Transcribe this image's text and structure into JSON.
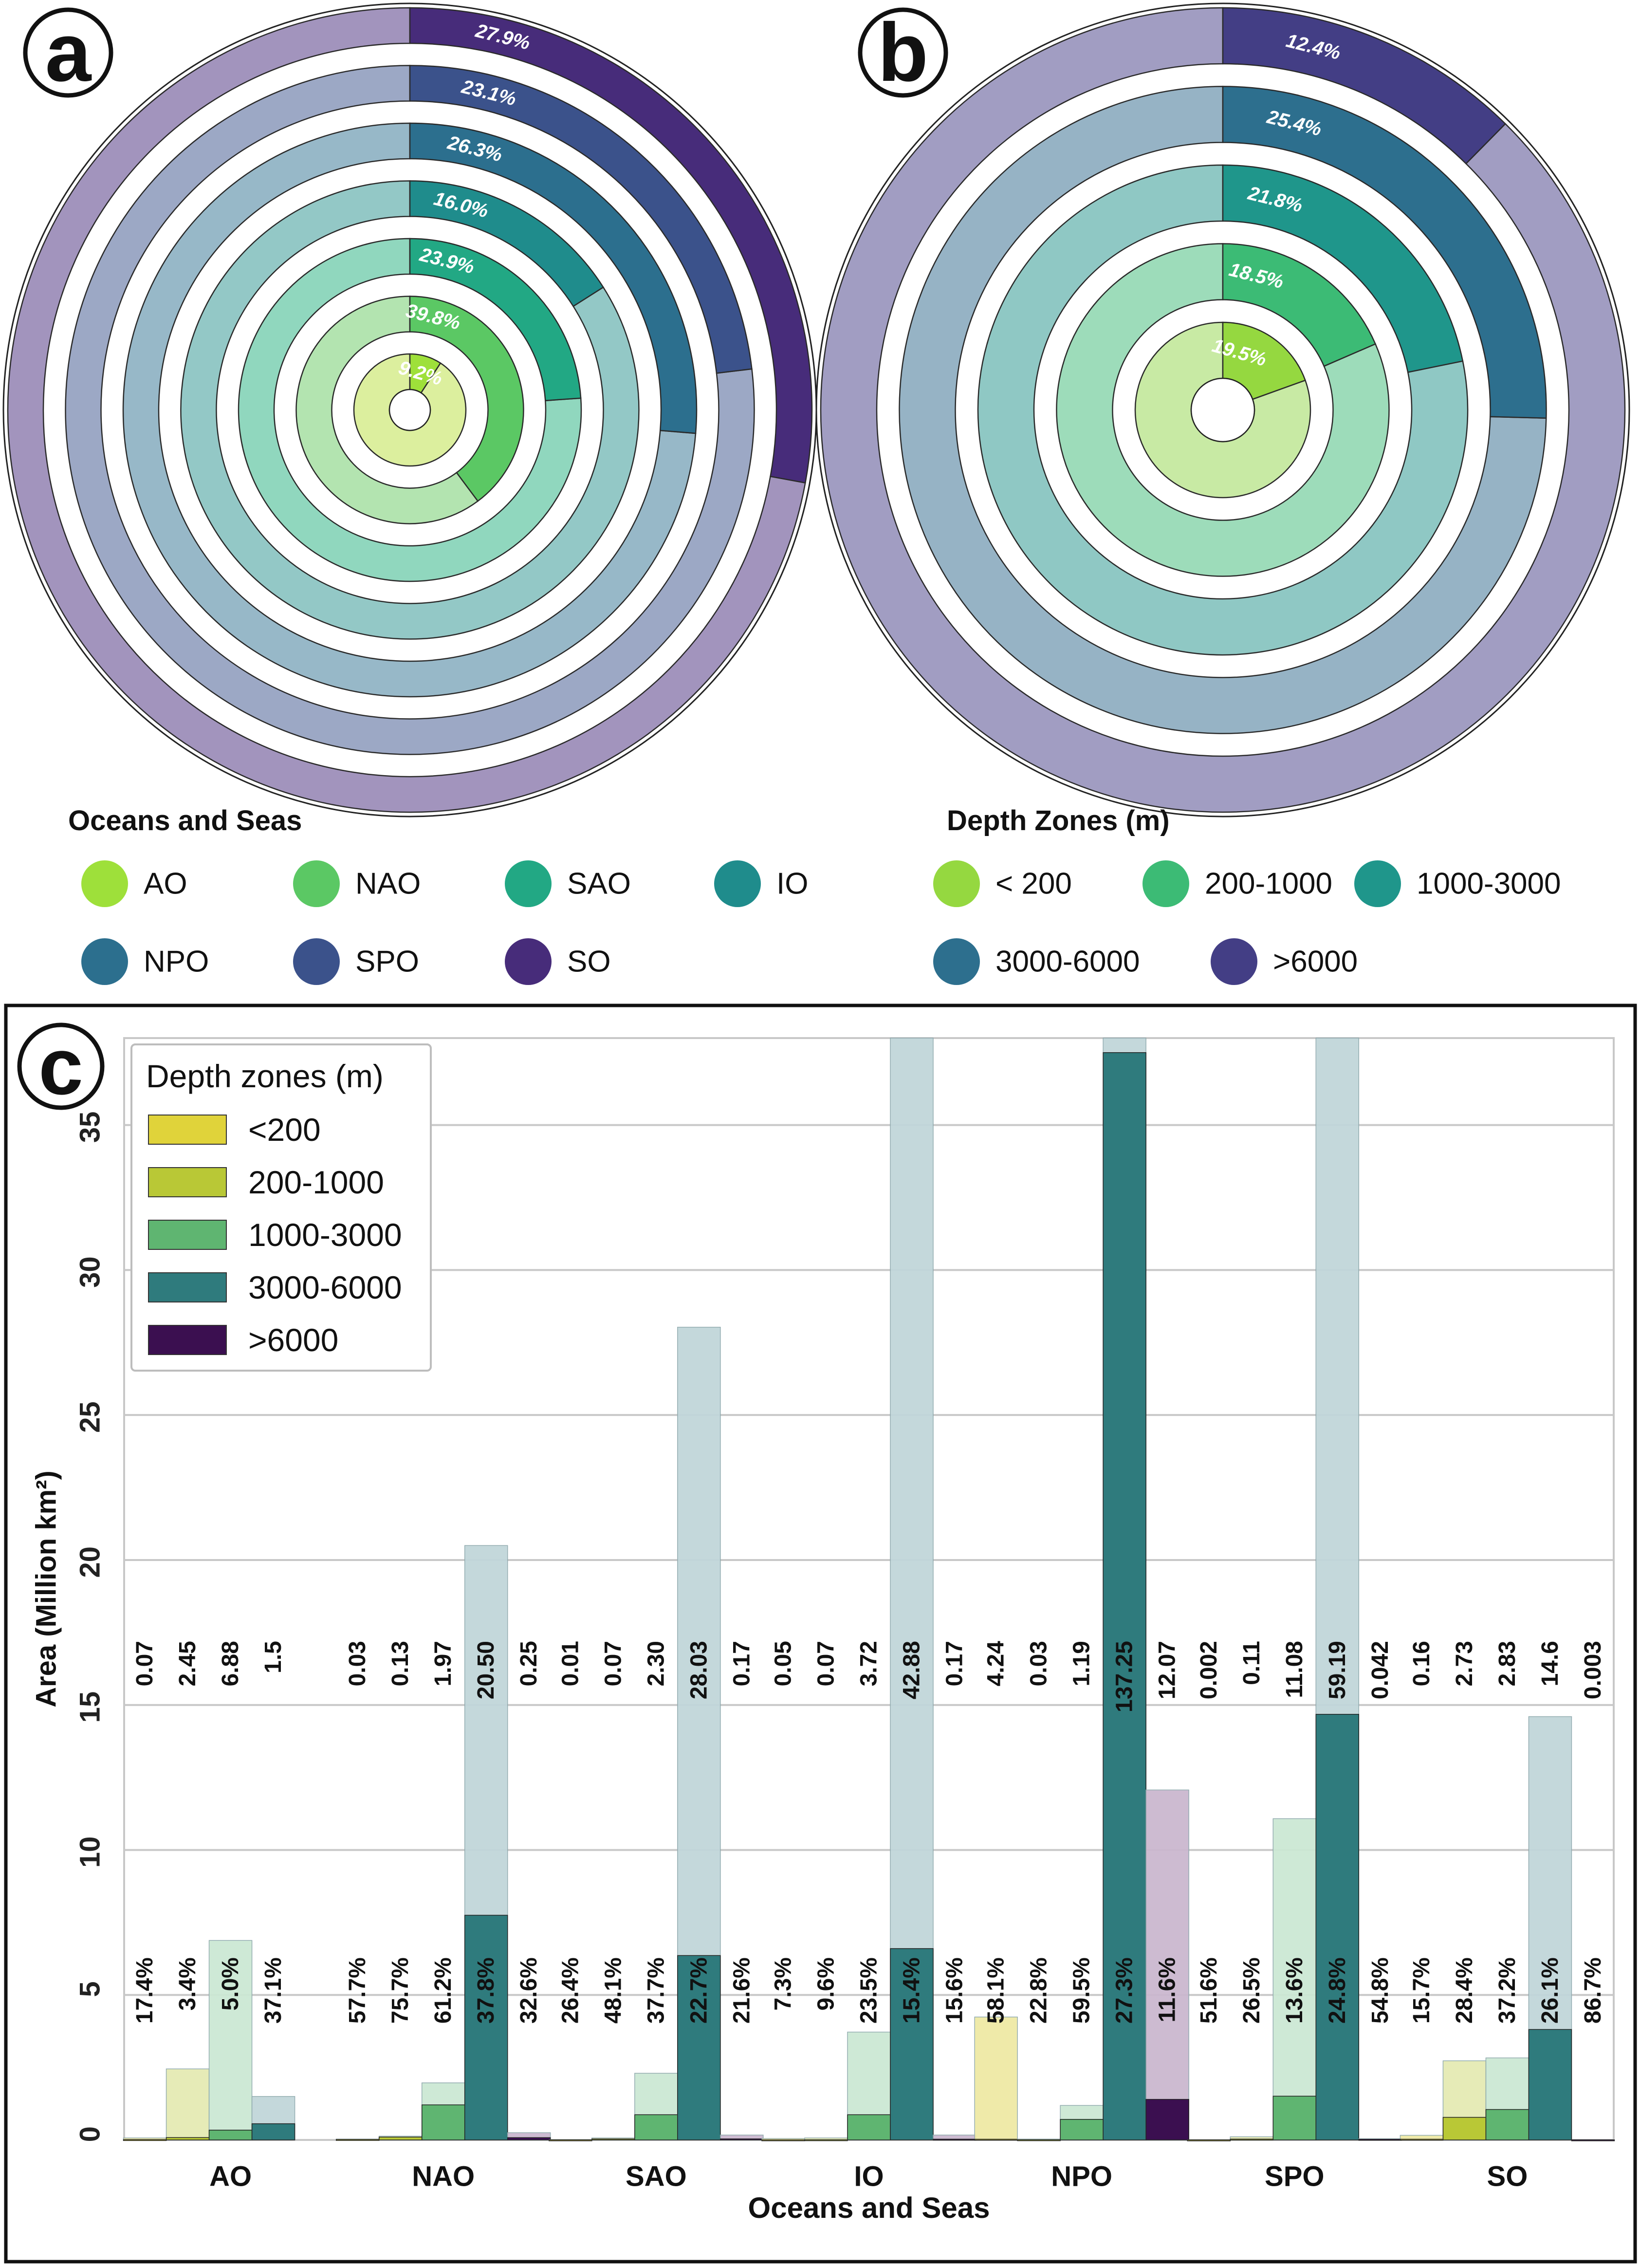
{
  "panels": {
    "a": {
      "letter": "a"
    },
    "b": {
      "letter": "b"
    },
    "c": {
      "letter": "c"
    }
  },
  "legend_oceans": {
    "title": "Oceans and Seas",
    "items": [
      {
        "label": "AO",
        "color": "#9ee03a"
      },
      {
        "label": "NAO",
        "color": "#5bc864"
      },
      {
        "label": "SAO",
        "color": "#22a884"
      },
      {
        "label": "IO",
        "color": "#1f8c8c"
      },
      {
        "label": "NPO",
        "color": "#2c6f8e"
      },
      {
        "label": "SPO",
        "color": "#3b528b"
      },
      {
        "label": "SO",
        "color": "#472c7a"
      }
    ]
  },
  "legend_depths": {
    "title": "Depth Zones (m)",
    "items": [
      {
        "label": "< 200",
        "color": "#95d840"
      },
      {
        "label": "200-1000",
        "color": "#3cbb75"
      },
      {
        "label": "1000-3000",
        "color": "#1f968b"
      },
      {
        "label": "3000-6000",
        "color": "#2d6f8e"
      },
      {
        "label": ">6000",
        "color": "#433e85"
      }
    ]
  },
  "chart_data": [
    {
      "panel": "a",
      "type": "pie",
      "title": "",
      "description_rings": "nested rings from center outward: AO, NAO, SAO, IO, NPO, SPO, SO; highlighted slice share per ring",
      "rings": [
        {
          "ocean": "AO",
          "percent": 9.2,
          "label": "9.2%",
          "color": "#9ee03a",
          "rest": "#dcef9e"
        },
        {
          "ocean": "NAO",
          "percent": 39.8,
          "label": "39.8%",
          "color": "#5bc864",
          "rest": "#b3e4b0"
        },
        {
          "ocean": "SAO",
          "percent": 23.9,
          "label": "23.9%",
          "color": "#22a884",
          "rest": "#90d7be"
        },
        {
          "ocean": "IO",
          "percent": 16.0,
          "label": "16.0%",
          "color": "#1f8c8c",
          "rest": "#93c8c6"
        },
        {
          "ocean": "NPO",
          "percent": 26.3,
          "label": "26.3%",
          "color": "#2c6f8e",
          "rest": "#97b8c8"
        },
        {
          "ocean": "SPO",
          "percent": 23.1,
          "label": "23.1%",
          "color": "#3b528b",
          "rest": "#9ca8c5"
        },
        {
          "ocean": "SO",
          "percent": 27.9,
          "label": "27.9%",
          "color": "#472c7a",
          "rest": "#a294bd"
        }
      ]
    },
    {
      "panel": "b",
      "type": "pie",
      "title": "",
      "description_rings": "nested rings from center outward: <200, 200-1000, 1000-3000, 3000-6000, >6000; highlighted slice share per ring",
      "rings": [
        {
          "zone": "< 200",
          "percent": 19.5,
          "label": "19.5%",
          "color": "#95d840",
          "rest": "#c8eaa4"
        },
        {
          "zone": "200-1000",
          "percent": 18.5,
          "label": "18.5%",
          "color": "#3cbb75",
          "rest": "#9ddcba"
        },
        {
          "zone": "1000-3000",
          "percent": 21.8,
          "label": "21.8%",
          "color": "#1f968b",
          "rest": "#8fc8c4"
        },
        {
          "zone": "3000-6000",
          "percent": 25.4,
          "label": "25.4%",
          "color": "#2d6f8e",
          "rest": "#96b3c5"
        },
        {
          "zone": ">6000",
          "percent": 12.4,
          "label": "12.4%",
          "color": "#433e85",
          "rest": "#a19dc2"
        }
      ]
    },
    {
      "panel": "c",
      "type": "bar",
      "title": "",
      "xlabel": "Oceans and Seas",
      "ylabel": "Area (Million km²)",
      "ylim": [
        0,
        38
      ],
      "yticks": [
        0,
        5,
        10,
        15,
        20,
        25,
        30,
        35
      ],
      "grid": true,
      "legend_title": "Depth zones (m)",
      "legend_placement": "top-left",
      "categories": [
        "AO",
        "NAO",
        "SAO",
        "IO",
        "NPO",
        "SPO",
        "SO"
      ],
      "series": [
        {
          "name": "<200",
          "color": "#e0d33a",
          "light": "#efe9a5",
          "values": [
            0.012,
            0.017,
            0.003,
            0.004,
            0.025,
            0.001,
            0.025
          ],
          "totals": [
            0.07,
            0.03,
            0.01,
            0.05,
            4.24,
            0.002,
            0.16
          ],
          "value_labels": [
            "0.07",
            "0.03",
            "0.01",
            "0.05",
            "4.24",
            "0.002",
            "0.16"
          ],
          "pct_labels": [
            "17.4%",
            "57.7%",
            "26.4%",
            "7.3%",
            "58.1%",
            "51.6%",
            "15.7%"
          ]
        },
        {
          "name": "200-1000",
          "color": "#b9c836",
          "light": "#e5eab4",
          "values": [
            0.083,
            0.098,
            0.034,
            0.007,
            0.007,
            0.029,
            0.78
          ],
          "totals": [
            2.45,
            0.13,
            0.07,
            0.07,
            0.03,
            0.11,
            2.73
          ],
          "value_labels": [
            "2.45",
            "0.13",
            "0.07",
            "0.07",
            "0.03",
            "0.11",
            "2.73"
          ],
          "pct_labels": [
            "3.4%",
            "75.7%",
            "48.1%",
            "9.6%",
            "22.8%",
            "26.5%",
            "28.4%"
          ]
        },
        {
          "name": "1000-3000",
          "color": "#5fb571",
          "light": "#cce8d4",
          "values": [
            0.34,
            1.21,
            0.87,
            0.87,
            0.71,
            1.51,
            1.05
          ],
          "totals": [
            6.88,
            1.97,
            2.3,
            3.72,
            1.19,
            11.08,
            2.83
          ],
          "value_labels": [
            "6.88",
            "1.97",
            "2.30",
            "3.72",
            "1.19",
            "11.08",
            "2.83"
          ],
          "pct_labels": [
            "5.0%",
            "61.2%",
            "37.7%",
            "23.5%",
            "59.5%",
            "13.6%",
            "37.2%"
          ]
        },
        {
          "name": "3000-6000",
          "color": "#2f7b7d",
          "light": "#c1d6da",
          "values": [
            0.56,
            7.75,
            6.36,
            6.6,
            37.5,
            14.68,
            3.81
          ],
          "totals": [
            1.5,
            20.5,
            28.03,
            42.88,
            137.25,
            59.19,
            14.6
          ],
          "value_labels": [
            "1.5",
            "20.50",
            "28.03",
            "42.88",
            "137.25",
            "59.19",
            "14.6"
          ],
          "pct_labels": [
            "37.1%",
            "37.8%",
            "22.7%",
            "15.4%",
            "27.3%",
            "24.8%",
            "26.1%"
          ]
        },
        {
          "name": ">6000",
          "color": "#3b0f50",
          "light": "#cbb8cf",
          "values": [
            0.0,
            0.08,
            0.037,
            0.027,
            1.4,
            0.023,
            0.003
          ],
          "totals": [
            0.0,
            0.25,
            0.17,
            0.17,
            12.07,
            0.042,
            0.003
          ],
          "value_labels": [
            "",
            "0.25",
            "0.17",
            "0.17",
            "12.07",
            "0.042",
            "0.003"
          ],
          "pct_labels": [
            "",
            "32.6%",
            "21.6%",
            "15.6%",
            "11.6%",
            "54.8%",
            "86.7%"
          ]
        }
      ]
    }
  ]
}
